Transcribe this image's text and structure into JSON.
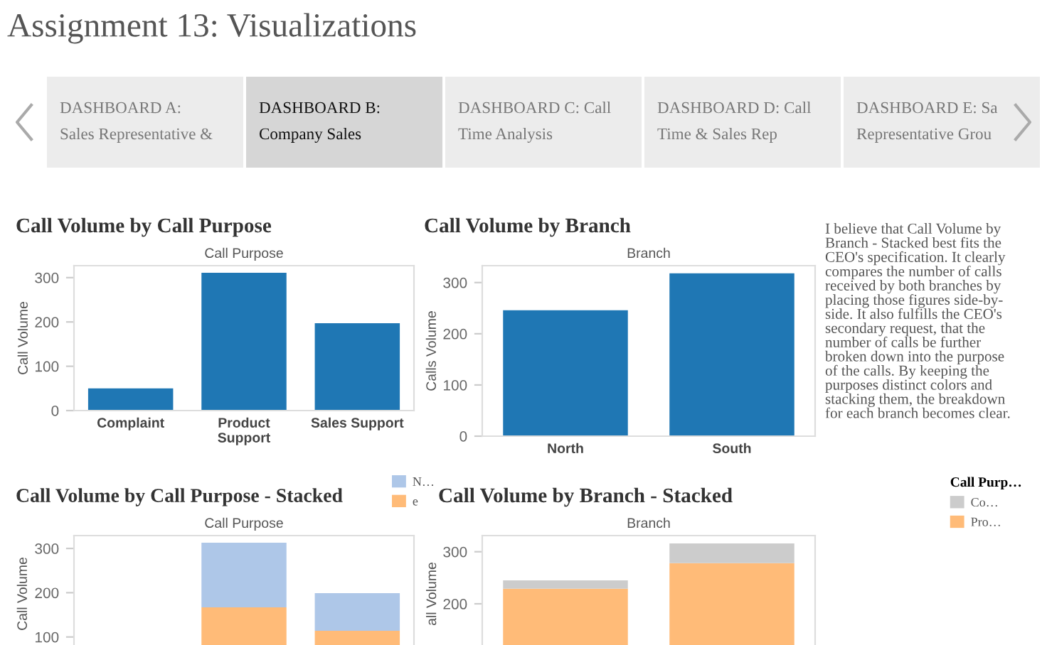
{
  "chart_data": [
    {
      "type": "other",
      "title": "Assignment 13: Visualizations",
      "annotations": [
        "DASHBOARD A:\nSales Representative &",
        "DASHBOARD B:\nCompany Sales",
        "DASHBOARD C: Call\nTime Analysis",
        "DASHBOARD D: Call\nTime & Sales Rep",
        "DASHBOARD E: Sa\nRepresentative Grou"
      ]
    },
    {
      "type": "bar",
      "title": "Call Volume by Call Purpose",
      "xlabel": "Call Purpose",
      "ylabel": "Call Volume",
      "categories": [
        "Complaint",
        "Product\nSupport",
        "Sales Support"
      ],
      "values": [
        50,
        311,
        197
      ],
      "color": "#1f77b4",
      "ylim": [
        0,
        327
      ],
      "yticks": [
        0,
        100,
        200,
        300
      ]
    },
    {
      "type": "bar",
      "title": "Call Volume by Branch",
      "xlabel": "Branch",
      "ylabel": "Calls Volume",
      "categories": [
        "North",
        "South"
      ],
      "values": [
        246,
        318
      ],
      "color": "#1f77b4",
      "ylim": [
        0,
        333
      ],
      "yticks": [
        0,
        100,
        200,
        300
      ]
    },
    {
      "type": "other",
      "annotations": [
        "I believe that Call Volume by\nBranch - Stacked best fits the\nCEO's specification. It clearly\ncompares the number of calls\nreceived by both branches by\nplacing those figures side-by-\nside. It also fulfills the CEO's\nsecondary request, that the\nnumber of calls be further\nbroken down into the purpose\nof the calls. By keeping the\npurposes distinct colors and\nstacking them, the breakdown\nfor each branch becomes clear."
      ]
    },
    {
      "type": "bar",
      "stacked": true,
      "title": "Call Volume by Call Purpose - Stacked",
      "xlabel": "Call Purpose",
      "ylabel": "Call Volume",
      "categories": [
        null,
        null,
        null
      ],
      "tick_labels": "y",
      "legend": "top right",
      "series": [
        {
          "name": "e",
          "color": "#ffbb78",
          "values": [
            null,
            167,
            114
          ]
        },
        {
          "name": "N…",
          "color": "#aec7e8",
          "values": [
            null,
            146,
            85
          ]
        }
      ],
      "ylim": [
        0,
        329
      ],
      "yticks": [
        100,
        200,
        300
      ]
    },
    {
      "type": "bar",
      "stacked": true,
      "title": "Call Volume by Branch - Stacked",
      "xlabel": "Branch",
      "ylabel": "all Volume",
      "categories": [
        null,
        null
      ],
      "tick_labels": "y",
      "legend": "right",
      "legend_title": "Call Purp…",
      "series": [
        {
          "name": "Pro…",
          "color": "#ffbb78",
          "values": [
            229,
            278
          ]
        },
        {
          "name": "Co…",
          "color": "#cccccc",
          "values": [
            16,
            38
          ]
        }
      ],
      "ylim": [
        0,
        331
      ],
      "yticks": [
        200,
        300
      ]
    }
  ]
}
